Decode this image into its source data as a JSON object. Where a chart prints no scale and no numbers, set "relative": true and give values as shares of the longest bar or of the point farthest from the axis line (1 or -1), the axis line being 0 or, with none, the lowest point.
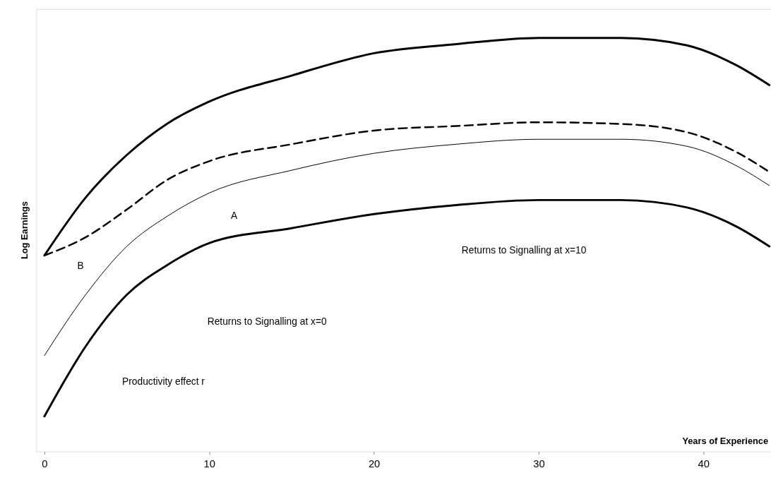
{
  "chart_data": {
    "type": "line",
    "xlabel": "Years of Experience",
    "ylabel": "Log Earnings",
    "relative": true,
    "x": [
      0,
      2.5,
      5,
      7.5,
      10,
      15,
      20,
      25,
      30,
      35,
      39,
      42,
      44
    ],
    "xlim": [
      -0.5,
      44.1
    ],
    "xticks": [
      0,
      10,
      20,
      30,
      40
    ],
    "tick_labels": "x",
    "grid": false,
    "marker": "none",
    "series": [
      {
        "color": "#000000",
        "line_style": "solid",
        "values": [
          0.474,
          0.614,
          0.717,
          0.794,
          0.846,
          0.909,
          0.963,
          0.985,
          1.0,
          1.0,
          0.982,
          0.934,
          0.886
        ]
      },
      {
        "color": "#000000",
        "line_style": "dashed",
        "values": [
          0.474,
          0.518,
          0.585,
          0.658,
          0.702,
          0.743,
          0.776,
          0.787,
          0.796,
          0.792,
          0.772,
          0.724,
          0.676
        ]
      },
      {
        "color": "#000000",
        "line_style": "solid",
        "values": [
          0.232,
          0.379,
          0.496,
          0.57,
          0.625,
          0.68,
          0.721,
          0.743,
          0.755,
          0.755,
          0.738,
          0.691,
          0.643
        ]
      },
      {
        "color": "#000000",
        "line_style": "solid",
        "values": [
          0.085,
          0.254,
          0.379,
          0.452,
          0.504,
          0.54,
          0.574,
          0.596,
          0.608,
          0.608,
          0.59,
          0.544,
          0.496
        ]
      }
    ],
    "annotations": [
      "A",
      "B",
      "Returns to Signalling at x=10",
      "Returns to Signalling at x=0",
      "Productivity effect r"
    ]
  }
}
